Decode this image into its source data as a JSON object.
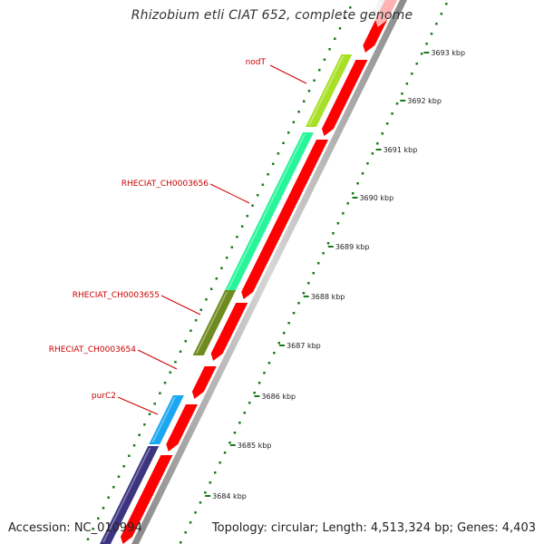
{
  "title": "Rhizobium etli CIAT 652, complete genome",
  "footer": {
    "accession": "Accession: NC_010994",
    "topology": "Topology: circular; Length: 4,513,324 bp; Genes: 4,403"
  },
  "colors": {
    "label_red": "#cc0000",
    "cds_red": "#ff0000",
    "tick_green": "#1a7a1a",
    "backbone_gray": "#b9b9b9"
  },
  "genes": [
    {
      "name": "nodT",
      "color": "#a8e028",
      "strand": "top"
    },
    {
      "name": "RHECIAT_CH0003656",
      "color": "#26f59a",
      "strand": "top"
    },
    {
      "name": "RHECIAT_CH0003655",
      "color": "#6f8a1e",
      "strand": "top"
    },
    {
      "name": "RHECIAT_CH0003654",
      "color": "#ff0000",
      "strand": "middle"
    },
    {
      "name": "purC2",
      "color": "#1aa6f0",
      "strand": "top"
    },
    {
      "name": "",
      "color": "#3d3480",
      "strand": "top"
    }
  ],
  "ticks": [
    {
      "label": "3693 kbp"
    },
    {
      "label": "3692 kbp"
    },
    {
      "label": "3691 kbp"
    },
    {
      "label": "3690 kbp"
    },
    {
      "label": "3689 kbp"
    },
    {
      "label": "3688 kbp"
    },
    {
      "label": "3687 kbp"
    },
    {
      "label": "3686 kbp"
    },
    {
      "label": "3685 kbp"
    },
    {
      "label": "3684 kbp"
    }
  ]
}
